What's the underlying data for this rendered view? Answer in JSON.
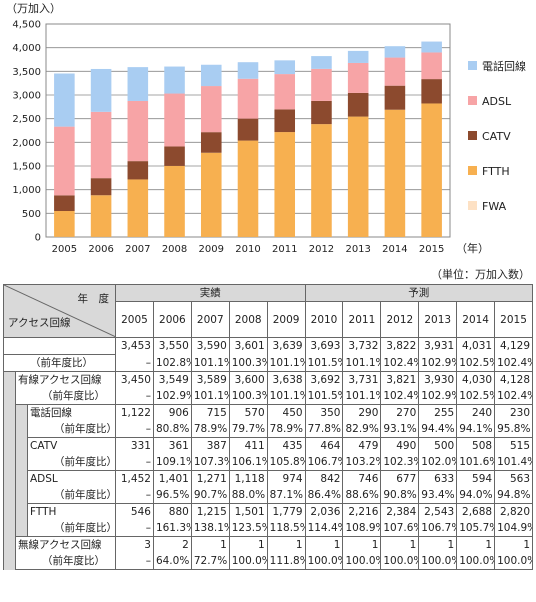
{
  "chart_data": {
    "type": "bar",
    "stacked": true,
    "ylabel": "（万加入）",
    "xlabel": "（年）",
    "ylim": [
      0,
      4500
    ],
    "yticks": [
      0,
      500,
      1000,
      1500,
      2000,
      2500,
      3000,
      3500,
      4000,
      4500
    ],
    "categories": [
      "2005",
      "2006",
      "2007",
      "2008",
      "2009",
      "2010",
      "2011",
      "2012",
      "2013",
      "2014",
      "2015"
    ],
    "legend_position": "right",
    "series": [
      {
        "name": "FWA",
        "color": "#fde1c4",
        "values": [
          3,
          2,
          1,
          1,
          1,
          1,
          1,
          1,
          1,
          1,
          1
        ]
      },
      {
        "name": "FTTH",
        "color": "#f7b050",
        "values": [
          546,
          880,
          1215,
          1501,
          1779,
          2036,
          2216,
          2384,
          2543,
          2688,
          2820
        ]
      },
      {
        "name": "CATV",
        "color": "#8c4a2e",
        "values": [
          331,
          361,
          387,
          411,
          435,
          464,
          479,
          490,
          500,
          508,
          515
        ]
      },
      {
        "name": "ADSL",
        "color": "#f7a4a6",
        "values": [
          1452,
          1401,
          1271,
          1118,
          974,
          842,
          746,
          677,
          633,
          594,
          563
        ]
      },
      {
        "name": "電話回線",
        "color": "#a9cdf2",
        "values": [
          1122,
          906,
          715,
          570,
          450,
          350,
          290,
          270,
          255,
          240,
          230
        ]
      }
    ],
    "legend_order": [
      "電話回線",
      "ADSL",
      "CATV",
      "FTTH",
      "FWA"
    ]
  },
  "table": {
    "unit": "（単位：万加入数）",
    "header_year": "年　度",
    "header_row": "アクセス回線",
    "group_actual": "実績",
    "group_forecast": "予測",
    "years": [
      "2005",
      "2006",
      "2007",
      "2008",
      "2009",
      "2010",
      "2011",
      "2012",
      "2013",
      "2014",
      "2015"
    ],
    "rows": [
      {
        "label": "",
        "indent": 0,
        "values": [
          "3,453",
          "3,550",
          "3,590",
          "3,601",
          "3,639",
          "3,693",
          "3,732",
          "3,822",
          "3,931",
          "4,031",
          "4,129"
        ]
      },
      {
        "label": "（前年度比）",
        "indent": 0,
        "ratio": true,
        "values": [
          "–",
          "102.8%",
          "101.1%",
          "100.3%",
          "101.1%",
          "101.5%",
          "101.1%",
          "102.4%",
          "102.9%",
          "102.5%",
          "102.4%"
        ]
      },
      {
        "label": "有線アクセス回線",
        "indent": 1,
        "values": [
          "3,450",
          "3,549",
          "3,589",
          "3,600",
          "3,638",
          "3,692",
          "3,731",
          "3,821",
          "3,930",
          "4,030",
          "4,128"
        ]
      },
      {
        "label": "（前年度比）",
        "indent": 1,
        "ratio": true,
        "values": [
          "–",
          "102.9%",
          "101.1%",
          "100.3%",
          "101.1%",
          "101.5%",
          "101.1%",
          "102.4%",
          "102.9%",
          "102.5%",
          "102.4%"
        ]
      },
      {
        "label": "電話回線",
        "indent": 2,
        "values": [
          "1,122",
          "906",
          "715",
          "570",
          "450",
          "350",
          "290",
          "270",
          "255",
          "240",
          "230"
        ]
      },
      {
        "label": "（前年度比）",
        "indent": 2,
        "ratio": true,
        "values": [
          "–",
          "80.8%",
          "78.9%",
          "79.7%",
          "78.9%",
          "77.8%",
          "82.9%",
          "93.1%",
          "94.4%",
          "94.1%",
          "95.8%"
        ]
      },
      {
        "label": "CATV",
        "indent": 2,
        "values": [
          "331",
          "361",
          "387",
          "411",
          "435",
          "464",
          "479",
          "490",
          "500",
          "508",
          "515"
        ]
      },
      {
        "label": "（前年度比）",
        "indent": 2,
        "ratio": true,
        "values": [
          "–",
          "109.1%",
          "107.3%",
          "106.1%",
          "105.8%",
          "106.7%",
          "103.2%",
          "102.3%",
          "102.0%",
          "101.6%",
          "101.4%"
        ]
      },
      {
        "label": "ADSL",
        "indent": 2,
        "values": [
          "1,452",
          "1,401",
          "1,271",
          "1,118",
          "974",
          "842",
          "746",
          "677",
          "633",
          "594",
          "563"
        ]
      },
      {
        "label": "（前年度比）",
        "indent": 2,
        "ratio": true,
        "values": [
          "–",
          "96.5%",
          "90.7%",
          "88.0%",
          "87.1%",
          "86.4%",
          "88.6%",
          "90.8%",
          "93.4%",
          "94.0%",
          "94.8%"
        ]
      },
      {
        "label": "FTTH",
        "indent": 2,
        "values": [
          "546",
          "880",
          "1,215",
          "1,501",
          "1,779",
          "2,036",
          "2,216",
          "2,384",
          "2,543",
          "2,688",
          "2,820"
        ]
      },
      {
        "label": "（前年度比）",
        "indent": 2,
        "ratio": true,
        "values": [
          "–",
          "161.3%",
          "138.1%",
          "123.5%",
          "118.5%",
          "114.4%",
          "108.9%",
          "107.6%",
          "106.7%",
          "105.7%",
          "104.9%"
        ]
      },
      {
        "label": "無線アクセス回線",
        "indent": 1,
        "values": [
          "3",
          "2",
          "1",
          "1",
          "1",
          "1",
          "1",
          "1",
          "1",
          "1",
          "1"
        ]
      },
      {
        "label": "（前年度比）",
        "indent": 1,
        "ratio": true,
        "values": [
          "–",
          "64.0%",
          "72.7%",
          "100.0%",
          "111.8%",
          "100.0%",
          "100.0%",
          "100.0%",
          "100.0%",
          "100.0%",
          "100.0%"
        ]
      }
    ]
  }
}
